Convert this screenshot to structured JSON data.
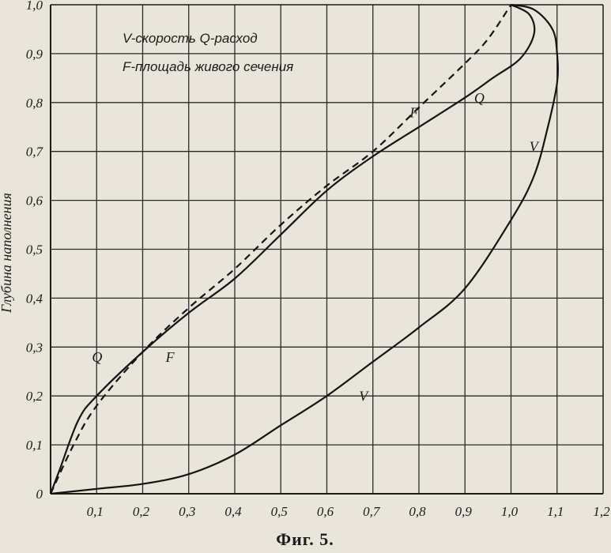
{
  "chart_data": {
    "type": "line",
    "caption": "Фиг. 5.",
    "ylabel": "Глубина наполнения",
    "xlabel": "",
    "legend_lines": [
      "V-скорость  Q-расход",
      "F-площадь живого сечения"
    ],
    "xlim": [
      0,
      1.2
    ],
    "ylim": [
      0,
      1.0
    ],
    "grid": true,
    "x_ticks": [
      "0,1",
      "0,2",
      "0,3",
      "0,4",
      "0,5",
      "0,6",
      "0,7",
      "0,8",
      "0,9",
      "1,0",
      "1,1",
      "1,2"
    ],
    "y_ticks": [
      "0",
      "0,1",
      "0,2",
      "0,3",
      "0,4",
      "0,5",
      "0,6",
      "0,7",
      "0,8",
      "0,9",
      "1,0"
    ],
    "series": [
      {
        "name": "Q",
        "style": "solid",
        "label_pos": [
          0.09,
          0.27
        ],
        "points": [
          [
            0,
            0
          ],
          [
            0.02,
            0.05
          ],
          [
            0.06,
            0.15
          ],
          [
            0.1,
            0.2
          ],
          [
            0.2,
            0.29
          ],
          [
            0.3,
            0.37
          ],
          [
            0.4,
            0.44
          ],
          [
            0.5,
            0.53
          ],
          [
            0.6,
            0.62
          ],
          [
            0.7,
            0.69
          ],
          [
            0.8,
            0.75
          ],
          [
            0.9,
            0.81
          ],
          [
            0.96,
            0.85
          ],
          [
            1.02,
            0.89
          ],
          [
            1.05,
            0.94
          ],
          [
            1.04,
            0.98
          ],
          [
            1.0,
            1.0
          ]
        ]
      },
      {
        "name": "F",
        "style": "dashed",
        "label_pos": [
          0.25,
          0.27
        ],
        "points": [
          [
            0,
            0
          ],
          [
            0.05,
            0.1
          ],
          [
            0.1,
            0.18
          ],
          [
            0.2,
            0.29
          ],
          [
            0.3,
            0.38
          ],
          [
            0.4,
            0.46
          ],
          [
            0.5,
            0.55
          ],
          [
            0.6,
            0.63
          ],
          [
            0.7,
            0.7
          ],
          [
            0.8,
            0.79
          ],
          [
            0.9,
            0.88
          ],
          [
            0.95,
            0.93
          ],
          [
            1.0,
            1.0
          ]
        ]
      },
      {
        "name": "V",
        "style": "solid",
        "label_pos": [
          0.67,
          0.19
        ],
        "points": [
          [
            0,
            0
          ],
          [
            0.1,
            0.01
          ],
          [
            0.2,
            0.02
          ],
          [
            0.3,
            0.04
          ],
          [
            0.4,
            0.08
          ],
          [
            0.5,
            0.14
          ],
          [
            0.6,
            0.2
          ],
          [
            0.7,
            0.27
          ],
          [
            0.8,
            0.34
          ],
          [
            0.9,
            0.42
          ],
          [
            1.0,
            0.56
          ],
          [
            1.05,
            0.65
          ],
          [
            1.08,
            0.75
          ],
          [
            1.1,
            0.84
          ],
          [
            1.1,
            0.9
          ],
          [
            1.09,
            0.95
          ],
          [
            1.05,
            0.99
          ],
          [
            1.0,
            1.0
          ]
        ]
      }
    ],
    "series_label_pos": {
      "Q_upper": [
        0.92,
        0.8
      ],
      "F_upper": [
        0.78,
        0.77
      ],
      "V_upper": [
        1.04,
        0.7
      ]
    }
  }
}
